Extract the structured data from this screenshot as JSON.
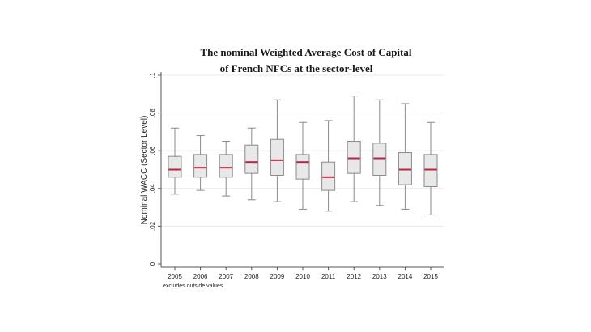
{
  "chart_data": {
    "type": "box",
    "title_lines": [
      "The nominal Weighted Average Cost of Capital",
      "of French NFCs at the sector-level"
    ],
    "xlabel": "",
    "ylabel": "Nominal WACC (Sector Level)",
    "ylim": [
      0,
      0.1
    ],
    "yticks": [
      0,
      0.02,
      0.04,
      0.06,
      0.08,
      0.1
    ],
    "ytick_labels": [
      "0",
      ".02",
      ".04",
      ".06",
      ".08",
      ".1"
    ],
    "grid": true,
    "note": "excludes outside values",
    "colors": {
      "box_fill": "#e8e8e8",
      "box_stroke": "#8a8a8a",
      "median": "#c0243c",
      "grid": "#e4e4e4"
    },
    "categories": [
      "2005",
      "2006",
      "2007",
      "2008",
      "2009",
      "2010",
      "2011",
      "2012",
      "2013",
      "2014",
      "2015"
    ],
    "boxes": [
      {
        "whisker_low": 0.037,
        "q1": 0.046,
        "median": 0.05,
        "q3": 0.057,
        "whisker_high": 0.072
      },
      {
        "whisker_low": 0.039,
        "q1": 0.046,
        "median": 0.051,
        "q3": 0.058,
        "whisker_high": 0.068
      },
      {
        "whisker_low": 0.036,
        "q1": 0.046,
        "median": 0.051,
        "q3": 0.058,
        "whisker_high": 0.065
      },
      {
        "whisker_low": 0.034,
        "q1": 0.048,
        "median": 0.054,
        "q3": 0.063,
        "whisker_high": 0.072
      },
      {
        "whisker_low": 0.033,
        "q1": 0.047,
        "median": 0.055,
        "q3": 0.066,
        "whisker_high": 0.087
      },
      {
        "whisker_low": 0.029,
        "q1": 0.045,
        "median": 0.054,
        "q3": 0.058,
        "whisker_high": 0.075
      },
      {
        "whisker_low": 0.028,
        "q1": 0.039,
        "median": 0.046,
        "q3": 0.054,
        "whisker_high": 0.076
      },
      {
        "whisker_low": 0.033,
        "q1": 0.048,
        "median": 0.056,
        "q3": 0.065,
        "whisker_high": 0.089
      },
      {
        "whisker_low": 0.031,
        "q1": 0.047,
        "median": 0.056,
        "q3": 0.064,
        "whisker_high": 0.087
      },
      {
        "whisker_low": 0.029,
        "q1": 0.042,
        "median": 0.05,
        "q3": 0.059,
        "whisker_high": 0.085
      },
      {
        "whisker_low": 0.026,
        "q1": 0.041,
        "median": 0.05,
        "q3": 0.058,
        "whisker_high": 0.075
      }
    ]
  }
}
